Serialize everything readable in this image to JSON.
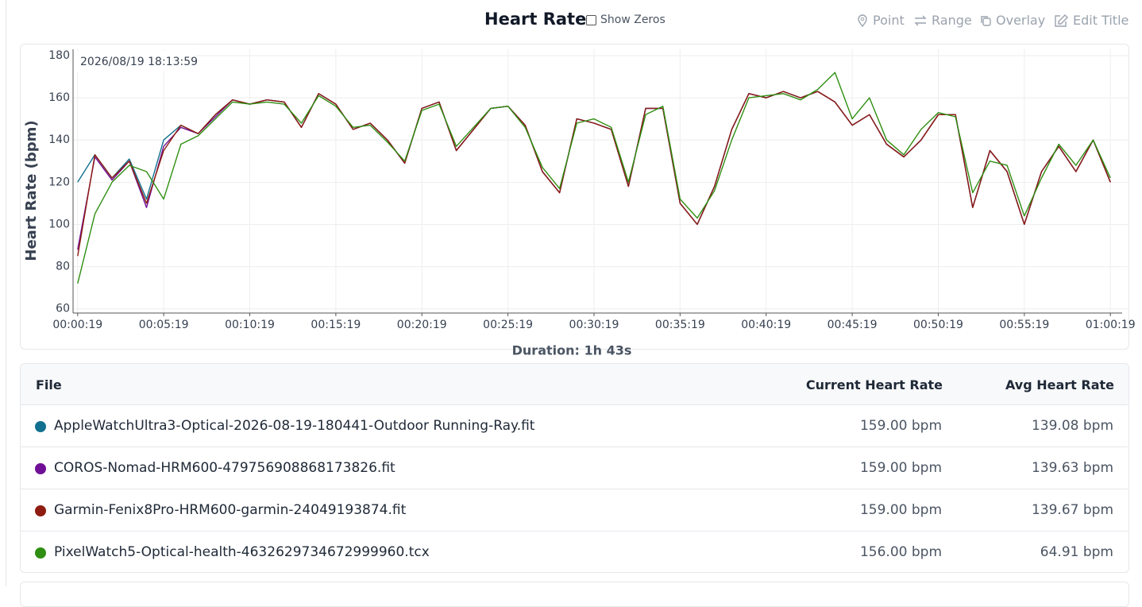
{
  "header": {
    "title": "Heart Rate",
    "toggle": "Show Zeros",
    "buttons": [
      "Point",
      "Range",
      "Overlay",
      "Edit Title"
    ]
  },
  "chart_data": {
    "type": "line",
    "ylabel": "Heart Rate (bpm)",
    "xlabel": "Duration: 1h 43s",
    "timestamp": "2026/08/19 18:13:59",
    "x": [
      19,
      79,
      139,
      199,
      259,
      319,
      379,
      439,
      499,
      559,
      619,
      679,
      739,
      799,
      859,
      919,
      979,
      1039,
      1099,
      1159,
      1219,
      1279,
      1339,
      1399,
      1459,
      1519,
      1579,
      1639,
      1699,
      1759,
      1819,
      1879,
      1939,
      1999,
      2059,
      2119,
      2179,
      2239,
      2299,
      2359,
      2419,
      2479,
      2539,
      2599,
      2659,
      2719,
      2779,
      2839,
      2899,
      2959,
      3019,
      3079,
      3139,
      3199,
      3259,
      3319,
      3379,
      3439,
      3499,
      3559,
      3619
    ],
    "series": [
      {
        "name": "AppleWatchUltra3-Optical-2026-08-19-180441-Outdoor Running-Ray.fit",
        "color": "#11708f",
        "values": [
          120,
          133,
          122,
          131,
          112,
          140,
          147,
          143,
          152,
          159,
          157,
          159,
          158,
          146,
          162,
          157,
          145,
          148,
          140,
          129,
          155,
          158,
          135,
          145,
          155,
          156,
          147,
          125,
          115,
          150,
          148,
          145,
          118,
          155,
          155,
          110,
          100,
          118,
          145,
          162,
          160,
          163,
          160,
          163,
          158,
          147,
          152,
          138,
          132,
          140,
          152,
          152,
          108,
          135,
          125,
          100,
          125,
          137,
          125,
          140,
          120
        ]
      },
      {
        "name": "COROS-Nomad-HRM600-479756908868173826.fit",
        "color": "#6f0f96",
        "values": [
          88,
          132,
          121,
          130,
          108,
          137,
          146,
          143,
          151,
          159,
          157,
          159,
          158,
          146,
          162,
          157,
          145,
          148,
          140,
          129,
          155,
          158,
          135,
          145,
          155,
          156,
          147,
          125,
          115,
          150,
          148,
          145,
          118,
          155,
          155,
          110,
          100,
          118,
          145,
          162,
          160,
          163,
          160,
          163,
          158,
          147,
          152,
          138,
          132,
          140,
          152,
          152,
          108,
          135,
          125,
          100,
          125,
          137,
          125,
          140,
          120
        ]
      },
      {
        "name": "Garmin-Fenix8Pro-HRM600-garmin-24049193874.fit",
        "color": "#8e1c10",
        "values": [
          85,
          133,
          122,
          130,
          110,
          135,
          147,
          143,
          152,
          159,
          157,
          159,
          158,
          146,
          162,
          157,
          145,
          148,
          140,
          129,
          155,
          158,
          135,
          145,
          155,
          156,
          147,
          125,
          115,
          150,
          148,
          145,
          118,
          155,
          155,
          110,
          100,
          118,
          145,
          162,
          160,
          163,
          160,
          163,
          158,
          147,
          152,
          138,
          132,
          140,
          152,
          152,
          108,
          135,
          125,
          100,
          125,
          137,
          125,
          140,
          120
        ]
      },
      {
        "name": "PixelWatch5-Optical-health-4632629734672999960.tcx",
        "color": "#2f8f12",
        "values": [
          72,
          105,
          120,
          128,
          125,
          112,
          138,
          142,
          150,
          158,
          157,
          158,
          157,
          148,
          161,
          156,
          146,
          147,
          139,
          130,
          154,
          157,
          137,
          146,
          155,
          156,
          146,
          127,
          117,
          148,
          150,
          146,
          120,
          152,
          156,
          112,
          103,
          116,
          140,
          160,
          161,
          162,
          159,
          164,
          172,
          150,
          160,
          140,
          133,
          145,
          153,
          151,
          115,
          130,
          128,
          104,
          122,
          138,
          128,
          140,
          122
        ]
      }
    ],
    "xlim": [
      3,
      3660
    ],
    "ylim": [
      58,
      183
    ],
    "xticks": [
      {
        "value": 19,
        "label": "00:00:19"
      },
      {
        "value": 319,
        "label": "00:05:19"
      },
      {
        "value": 619,
        "label": "00:10:19"
      },
      {
        "value": 919,
        "label": "00:15:19"
      },
      {
        "value": 1219,
        "label": "00:20:19"
      },
      {
        "value": 1519,
        "label": "00:25:19"
      },
      {
        "value": 1819,
        "label": "00:30:19"
      },
      {
        "value": 2119,
        "label": "00:35:19"
      },
      {
        "value": 2419,
        "label": "00:40:19"
      },
      {
        "value": 2719,
        "label": "00:45:19"
      },
      {
        "value": 3019,
        "label": "00:50:19"
      },
      {
        "value": 3319,
        "label": "00:55:19"
      },
      {
        "value": 3619,
        "label": "01:00:19"
      }
    ],
    "yticks": [
      60,
      80,
      100,
      120,
      140,
      160,
      180
    ],
    "grid": true
  },
  "table": {
    "columns": [
      "File",
      "Current Heart Rate",
      "Avg Heart Rate"
    ],
    "rows": [
      {
        "current": "159.00 bpm",
        "avg": "139.08 bpm"
      },
      {
        "current": "159.00 bpm",
        "avg": "139.63 bpm"
      },
      {
        "current": "159.00 bpm",
        "avg": "139.67 bpm"
      },
      {
        "current": "156.00 bpm",
        "avg": "64.91 bpm"
      }
    ]
  }
}
